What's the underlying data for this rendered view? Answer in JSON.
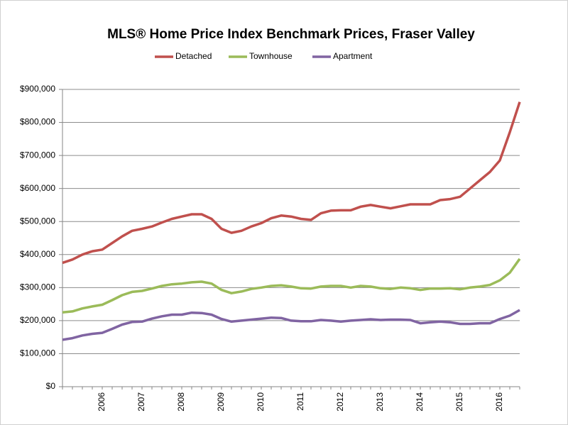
{
  "chart_data": {
    "type": "line",
    "title": "MLS® Home Price Index Benchmark Prices, Fraser Valley",
    "categories": [
      null,
      null,
      null,
      null,
      "2006",
      null,
      null,
      null,
      "2007",
      null,
      null,
      null,
      "2008",
      null,
      null,
      null,
      "2009",
      null,
      null,
      null,
      "2010",
      null,
      null,
      null,
      "2011",
      null,
      null,
      null,
      "2012",
      null,
      null,
      null,
      "2013",
      null,
      null,
      null,
      "2014",
      null,
      null,
      null,
      "2015",
      null,
      null,
      null,
      "2016",
      null,
      null
    ],
    "series": [
      {
        "name": "Detached",
        "color": "#c0504d",
        "values": [
          375000,
          385000,
          400000,
          410000,
          415000,
          435000,
          455000,
          472000,
          478000,
          485000,
          497000,
          508000,
          515000,
          522000,
          522000,
          508000,
          478000,
          466000,
          472000,
          485000,
          495000,
          510000,
          518000,
          515000,
          508000,
          505000,
          525000,
          533000,
          534000,
          534000,
          545000,
          550000,
          545000,
          540000,
          546000,
          552000,
          552000,
          552000,
          565000,
          568000,
          575000,
          600000,
          625000,
          650000,
          685000,
          770000,
          862000
        ]
      },
      {
        "name": "Townhouse",
        "color": "#9bbb59",
        "values": [
          225000,
          228000,
          237000,
          243000,
          248000,
          262000,
          277000,
          287000,
          290000,
          297000,
          305000,
          310000,
          312000,
          316000,
          318000,
          312000,
          293000,
          283000,
          288000,
          296000,
          300000,
          305000,
          307000,
          303000,
          298000,
          297000,
          303000,
          305000,
          305000,
          300000,
          305000,
          303000,
          298000,
          296000,
          300000,
          298000,
          293000,
          297000,
          297000,
          298000,
          295000,
          300000,
          303000,
          308000,
          322000,
          345000,
          387000
        ]
      },
      {
        "name": "Apartment",
        "color": "#8064a2",
        "values": [
          142000,
          147000,
          155000,
          160000,
          163000,
          175000,
          188000,
          196000,
          197000,
          206000,
          213000,
          218000,
          218000,
          224000,
          223000,
          218000,
          205000,
          197000,
          200000,
          203000,
          206000,
          209000,
          208000,
          200000,
          198000,
          198000,
          202000,
          200000,
          197000,
          200000,
          202000,
          204000,
          202000,
          203000,
          203000,
          202000,
          192000,
          195000,
          197000,
          195000,
          190000,
          190000,
          192000,
          192000,
          205000,
          215000,
          232000
        ]
      }
    ],
    "ylim": [
      0,
      900000
    ],
    "yticks": [
      {
        "value": 0,
        "label": "$0"
      },
      {
        "value": 100000,
        "label": "$100,000"
      },
      {
        "value": 200000,
        "label": "$200,000"
      },
      {
        "value": 300000,
        "label": "$300,000"
      },
      {
        "value": 400000,
        "label": "$400,000"
      },
      {
        "value": 500000,
        "label": "$500,000"
      },
      {
        "value": 600000,
        "label": "$600,000"
      },
      {
        "value": 700000,
        "label": "$700,000"
      },
      {
        "value": 800000,
        "label": "$800,000"
      },
      {
        "value": 900000,
        "label": "$900,000"
      }
    ],
    "grid": true,
    "legend": "top"
  }
}
